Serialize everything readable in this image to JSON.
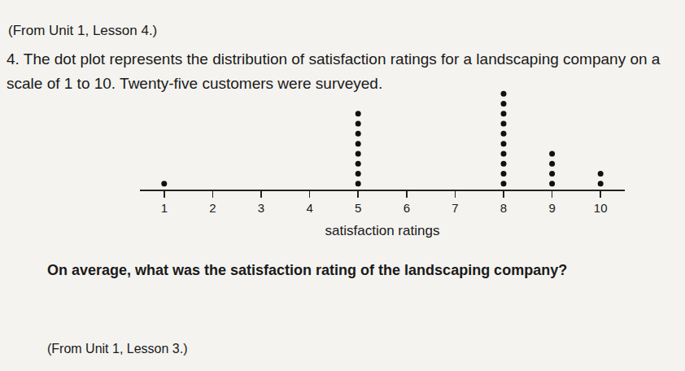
{
  "header": "(From Unit 1, Lesson 4.)",
  "prompt": "4. The dot plot represents the distribution of satisfaction ratings for a landscaping company on a scale of 1 to 10. Twenty-five customers were surveyed.",
  "chart_data": {
    "type": "dot",
    "x_label": "satisfaction ratings",
    "x": [
      1,
      5,
      8,
      9,
      10
    ],
    "counts": [
      1,
      8,
      10,
      4,
      2
    ],
    "xlim": [
      0.5,
      10.5
    ],
    "xticks": [
      1,
      2,
      3,
      4,
      5,
      6,
      7,
      8,
      9,
      10
    ],
    "color": "#111111",
    "marker": "circle"
  },
  "question": "On average, what was the satisfaction rating of the landscaping company?",
  "footer": "(From Unit 1, Lesson 3.)"
}
